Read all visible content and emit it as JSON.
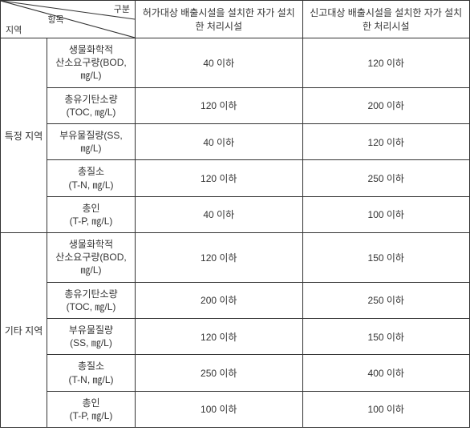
{
  "header": {
    "diag_top": "구분",
    "diag_mid": "항목",
    "diag_bot": "지역",
    "col1": "허가대상 배출시설을 설치한 자가 설치한 처리시설",
    "col2": "신고대상 배출시설을 설치한 자가 설치한 처리시설"
  },
  "regions": [
    {
      "name": "특정 지역",
      "params": [
        {
          "label": "생물화학적\n산소요구량(BOD,\n㎎/L)",
          "v1": "40 이하",
          "v2": "120 이하"
        },
        {
          "label": "총유기탄소량\n(TOC, ㎎/L)",
          "v1": "120 이하",
          "v2": "200 이하"
        },
        {
          "label": "부유물질량(SS,\n㎎/L)",
          "v1": "40 이하",
          "v2": "120 이하"
        },
        {
          "label": "총질소\n(T-N, ㎎/L)",
          "v1": "120 이하",
          "v2": "250 이하"
        },
        {
          "label": "총인\n(T-P, ㎎/L)",
          "v1": "40 이하",
          "v2": "100 이하"
        }
      ]
    },
    {
      "name": "기타 지역",
      "params": [
        {
          "label": "생물화학적\n산소요구량(BOD,\n㎎/L)",
          "v1": "120 이하",
          "v2": "150 이하"
        },
        {
          "label": "총유기탄소량\n(TOC, ㎎/L)",
          "v1": "200 이하",
          "v2": "250 이하"
        },
        {
          "label": "부유물질량\n(SS, ㎎/L)",
          "v1": "120 이하",
          "v2": "150 이하"
        },
        {
          "label": "총질소\n(T-N, ㎎/L)",
          "v1": "250 이하",
          "v2": "400 이하"
        },
        {
          "label": "총인\n(T-P, ㎎/L)",
          "v1": "100 이하",
          "v2": "100 이하"
        }
      ]
    }
  ]
}
